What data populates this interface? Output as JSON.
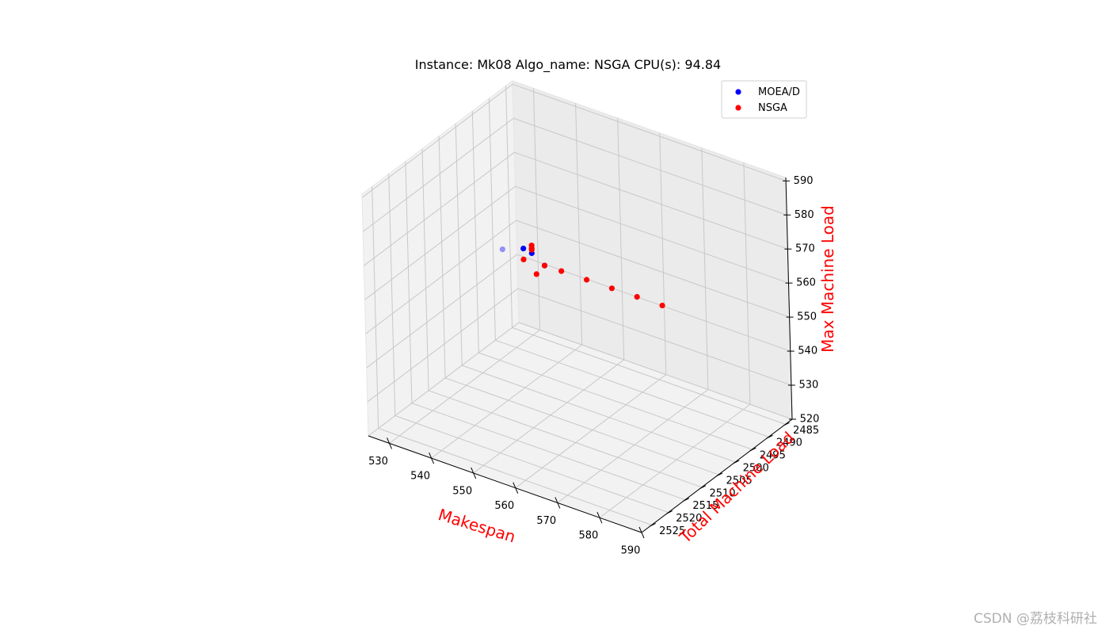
{
  "chart_data": {
    "type": "scatter",
    "projection": "3d",
    "title": "Instance: Mk08 Algo_name: NSGA CPU(s): 94.84",
    "xlabel": "Makespan",
    "ylabel": "Total Machine Load",
    "zlabel": "Max Machine Load",
    "axis_label_color": "#ff0000",
    "xlim": [
      525,
      590
    ],
    "ylim": [
      2483,
      2528
    ],
    "zlim": [
      520,
      591
    ],
    "x_ticks": [
      "530",
      "540",
      "550",
      "560",
      "570",
      "580",
      "590"
    ],
    "y_ticks": [
      "2485",
      "2490",
      "2495",
      "2500",
      "2505",
      "2510",
      "2515",
      "2520",
      "2525"
    ],
    "z_ticks": [
      "520",
      "530",
      "540",
      "550",
      "560",
      "570",
      "580",
      "590"
    ],
    "grid": true,
    "legend_position": "top-right",
    "series": [
      {
        "name": "MOEA/D",
        "color": "#0000ff",
        "points": [
          {
            "x": 524,
            "y": 2486,
            "z": 543.3
          },
          {
            "x": 529,
            "y": 2486,
            "z": 545.7
          },
          {
            "x": 531,
            "y": 2486,
            "z": 545.2
          },
          {
            "x": 534,
            "y": 2486,
            "z": 542.9
          }
        ]
      },
      {
        "name": "NSGA",
        "color": "#ff0000",
        "points": [
          {
            "x": 529,
            "y": 2486,
            "z": 542.5
          },
          {
            "x": 531,
            "y": 2486,
            "z": 546.2
          },
          {
            "x": 531,
            "y": 2486,
            "z": 546.7
          },
          {
            "x": 531,
            "y": 2486,
            "z": 547.5
          },
          {
            "x": 532,
            "y": 2486,
            "z": 539.5
          },
          {
            "x": 534,
            "y": 2486,
            "z": 542.9
          },
          {
            "x": 538,
            "y": 2486,
            "z": 543.0
          },
          {
            "x": 544,
            "y": 2486,
            "z": 543.1
          },
          {
            "x": 550,
            "y": 2486,
            "z": 543.2
          },
          {
            "x": 556,
            "y": 2486,
            "z": 543.3
          },
          {
            "x": 562,
            "y": 2486,
            "z": 543.4
          }
        ]
      }
    ]
  },
  "watermark": "CSDN @荔枝科研社"
}
